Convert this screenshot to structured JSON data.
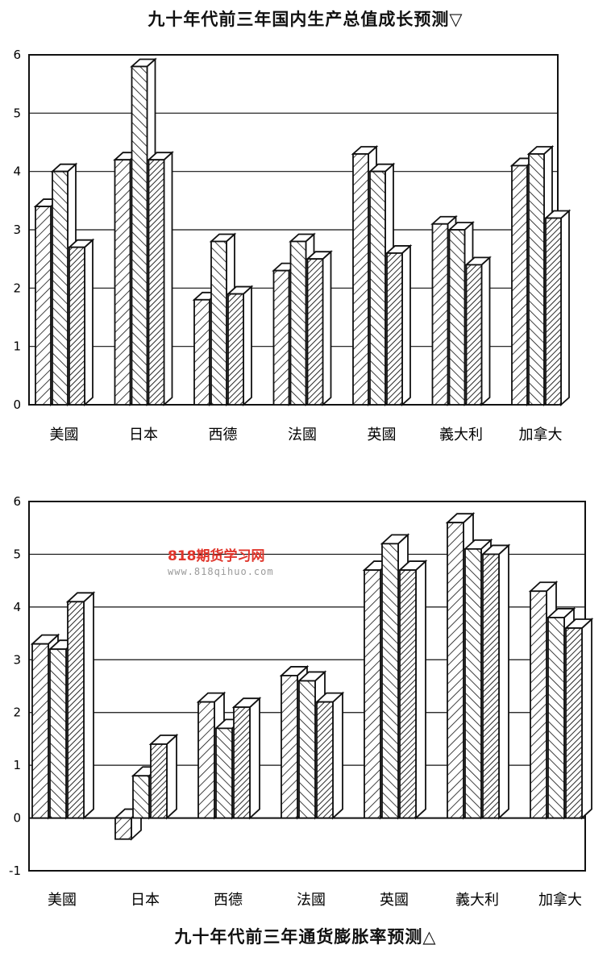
{
  "chart_data": [
    {
      "type": "bar",
      "title": "九十年代前三年国内生产总值成长预测▽",
      "categories": [
        "美國",
        "日本",
        "西德",
        "法國",
        "英國",
        "義大利",
        "加拿大"
      ],
      "series": [
        {
          "values": [
            3.4,
            4.2,
            1.8,
            2.3,
            4.3,
            3.1,
            4.1
          ]
        },
        {
          "values": [
            4.0,
            5.8,
            2.8,
            2.8,
            4.0,
            3.0,
            4.3
          ]
        },
        {
          "values": [
            2.7,
            4.2,
            1.9,
            2.5,
            2.6,
            2.4,
            3.2
          ]
        }
      ],
      "y_ticks": [
        "0",
        "1",
        "2",
        "3",
        "4",
        "5",
        "6"
      ],
      "ylim": [
        0,
        6
      ],
      "grid": true
    },
    {
      "type": "bar",
      "title": "九十年代前三年通货膨胀率预测△",
      "categories": [
        "美國",
        "日本",
        "西德",
        "法國",
        "英國",
        "義大利",
        "加拿大"
      ],
      "series": [
        {
          "values": [
            3.3,
            -0.4,
            2.2,
            2.7,
            4.7,
            5.6,
            4.3
          ]
        },
        {
          "values": [
            3.2,
            0.8,
            1.7,
            2.6,
            5.2,
            5.1,
            3.8
          ]
        },
        {
          "values": [
            4.1,
            1.4,
            2.1,
            2.2,
            4.7,
            5.0,
            3.6
          ]
        }
      ],
      "y_ticks": [
        "-1",
        "0",
        "1",
        "2",
        "3",
        "4",
        "5",
        "6"
      ],
      "ylim": [
        -1,
        6
      ],
      "grid": true
    }
  ],
  "watermark": {
    "logo": "818期货学习网",
    "url": "www.818qihuo.com"
  },
  "colors": {
    "ink": "#111111",
    "bar_face": "#ffffff",
    "watermark_red": "#e0352b",
    "watermark_gray": "#9a9a9a"
  }
}
